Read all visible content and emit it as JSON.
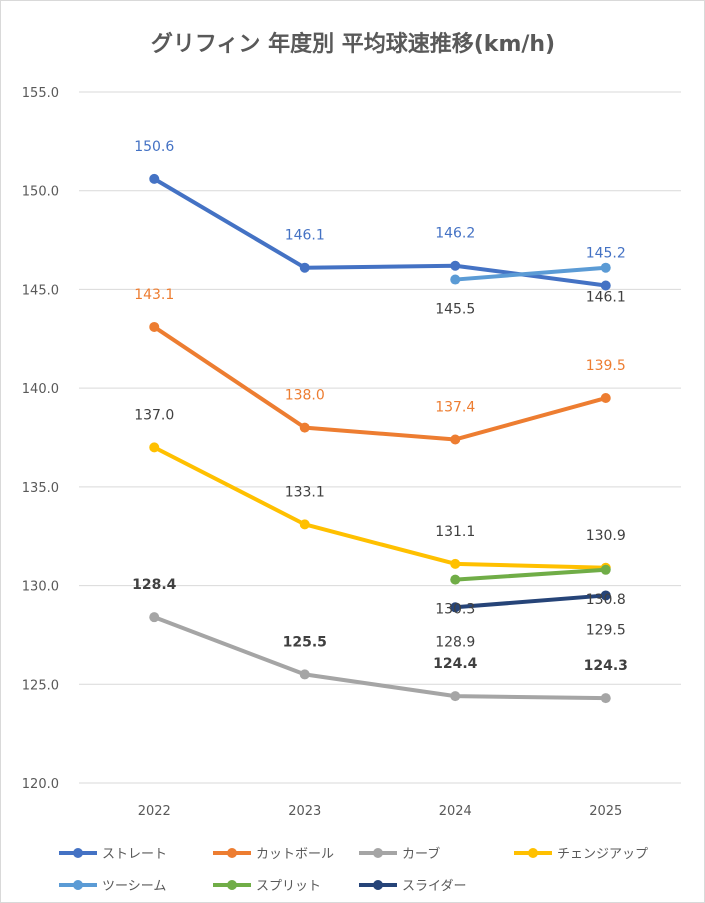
{
  "chart_data": {
    "type": "line",
    "title": "グリフィン 年度別 平均球速推移(km/h)",
    "xlabel": "",
    "ylabel": "",
    "categories": [
      "2022",
      "2023",
      "2024",
      "2025"
    ],
    "ylim": [
      120,
      155
    ],
    "yticks": [
      "120.0",
      "125.0",
      "130.0",
      "135.0",
      "140.0",
      "145.0",
      "150.0",
      "155.0"
    ],
    "grid": true,
    "legend_position": "bottom",
    "series": [
      {
        "name": "ストレート",
        "color": "#4472c4",
        "values": [
          150.6,
          146.1,
          146.2,
          145.2
        ],
        "labels": [
          "150.6",
          "146.1",
          "146.2",
          "145.2"
        ],
        "label_color": "#4472c4",
        "label_bold": false
      },
      {
        "name": "カットボール",
        "color": "#ed7d31",
        "values": [
          143.1,
          138.0,
          137.4,
          139.5
        ],
        "labels": [
          "143.1",
          "138.0",
          "137.4",
          "139.5"
        ],
        "label_color": "#ed7d31",
        "label_bold": false
      },
      {
        "name": "カーブ",
        "color": "#a5a5a5",
        "values": [
          128.4,
          125.5,
          124.4,
          124.3
        ],
        "labels": [
          "128.4",
          "125.5",
          "124.4",
          "124.3"
        ],
        "label_color": "#404040",
        "label_bold": true
      },
      {
        "name": "チェンジアップ",
        "color": "#ffc000",
        "values": [
          137.0,
          133.1,
          131.1,
          130.9
        ],
        "labels": [
          "137.0",
          "133.1",
          "131.1",
          "130.9"
        ],
        "label_color": "#404040",
        "label_bold": false
      },
      {
        "name": "ツーシーム",
        "color": "#5b9bd5",
        "values": [
          null,
          null,
          145.5,
          146.1
        ],
        "labels": [
          null,
          null,
          "145.5",
          "146.1"
        ],
        "label_color": "#404040",
        "label_bold": false
      },
      {
        "name": "スプリット",
        "color": "#70ad47",
        "values": [
          null,
          null,
          130.3,
          130.8
        ],
        "labels": [
          null,
          null,
          "130.3",
          "130.8"
        ],
        "label_color": "#404040",
        "label_bold": false
      },
      {
        "name": "スライダー",
        "color": "#264478",
        "values": [
          null,
          null,
          128.9,
          129.5
        ],
        "labels": [
          null,
          null,
          "128.9",
          "129.5"
        ],
        "label_color": "#404040",
        "label_bold": false
      }
    ]
  }
}
